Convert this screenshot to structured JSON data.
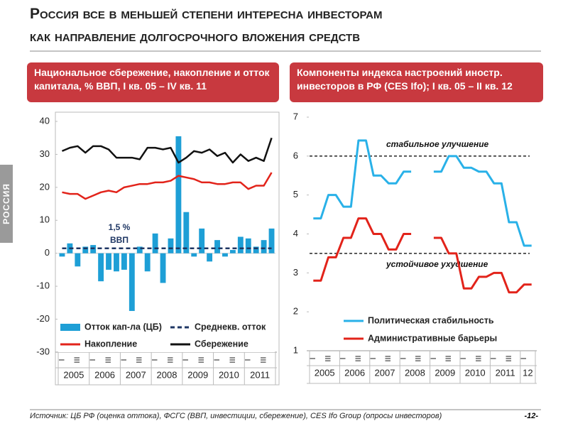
{
  "header": {
    "title_line1": "Россия все в меньшей степени интересна инвесторам",
    "title_line2": "как направление долгосрочного вложения средств"
  },
  "side_label": "РОССИЯ",
  "footer": {
    "source": "Источник: ЦБ РФ (оценка оттока), ФСГС (ВВП, инвестиции, сбережение), CES Ifo Group (опросы инвесторов)",
    "page_number": "-12-"
  },
  "chart_data": [
    {
      "type": "combo",
      "title": "Национальное сбережение, накопление и отток капитала, % ВВП, I кв. 05 – IV кв. 11",
      "categories": [
        "I",
        null,
        "III",
        null,
        "I",
        null,
        "III",
        null,
        "I",
        null,
        "III",
        null,
        "I",
        null,
        "III",
        null,
        "I",
        null,
        "III",
        null,
        "I",
        null,
        "III",
        null,
        "I",
        null,
        "III",
        null
      ],
      "years": [
        "2005",
        "2006",
        "2007",
        "2008",
        "2009",
        "2010",
        "2011"
      ],
      "ylim": [
        -30,
        40
      ],
      "yticks": [
        -30,
        -20,
        -10,
        0,
        10,
        20,
        30,
        40
      ],
      "annotation": [
        "1,5 %",
        "ВВП"
      ],
      "series": [
        {
          "name": "Отток кап-ла (ЦБ)",
          "kind": "bar",
          "color": "#1e9fd6",
          "values": [
            -1,
            3,
            -4,
            2,
            2.5,
            -8.5,
            -5,
            -5.5,
            -5,
            -17.5,
            2,
            -5.5,
            6,
            -9,
            4.5,
            35.5,
            12.5,
            -1,
            7.5,
            -2.5,
            4,
            -1,
            1,
            5,
            4.5,
            2,
            4,
            7.5
          ]
        },
        {
          "name": "Среднекв. отток",
          "kind": "dashed",
          "color": "#1f3764",
          "values": [
            1.5,
            1.5,
            1.5,
            1.5,
            1.5,
            1.5,
            1.5,
            1.5,
            1.5,
            1.5,
            1.5,
            1.5,
            1.5,
            1.5,
            1.5,
            1.5,
            1.5,
            1.5,
            1.5,
            1.5,
            1.5,
            1.5,
            1.5,
            1.5,
            1.5,
            1.5,
            1.5,
            1.5
          ]
        },
        {
          "name": "Накопление",
          "kind": "line",
          "color": "#e2231a",
          "values": [
            18.5,
            18,
            18,
            16.5,
            17.5,
            18.5,
            19,
            18.5,
            20,
            20.5,
            21,
            21,
            21.5,
            21.5,
            22,
            23.5,
            23,
            22.5,
            21.5,
            21.5,
            21,
            21,
            21.5,
            21.5,
            19.5,
            20.5,
            20.5,
            24.5
          ]
        },
        {
          "name": "Сбережение",
          "kind": "line",
          "color": "#111111",
          "values": [
            31,
            32,
            32.5,
            30.5,
            32.5,
            32.5,
            31.5,
            29,
            29,
            29,
            28.5,
            32,
            32,
            31.5,
            32,
            27.5,
            29,
            31,
            30.5,
            31.5,
            29.5,
            30.5,
            27.5,
            30,
            28,
            29,
            28,
            35
          ]
        }
      ]
    },
    {
      "type": "line",
      "title": "Компоненты индекса настроений иностр. инвесторов в РФ (CES Ifo); I кв. 05 – II кв. 12",
      "categories": [
        "I",
        null,
        "III",
        null,
        "I",
        null,
        "III",
        null,
        "I",
        null,
        "III",
        null,
        "I",
        null,
        "III",
        null,
        "I",
        null,
        "III",
        null,
        "I",
        null,
        "III",
        null,
        "I",
        null,
        "III",
        null,
        "I",
        null
      ],
      "years": [
        "2005",
        "2006",
        "2007",
        "2008",
        "2009",
        "2010",
        "2011",
        "12"
      ],
      "ylim": [
        1,
        7
      ],
      "yticks": [
        1,
        2,
        3,
        4,
        5,
        6,
        7
      ],
      "reference_lines": [
        {
          "value": 6,
          "label": "стабильное улучшение"
        },
        {
          "value": 3.5,
          "label": "устойчивое ухудшение"
        }
      ],
      "series": [
        {
          "name": "Политическая стабильность",
          "kind": "line",
          "color": "#29b1e8",
          "values": [
            4.4,
            4.4,
            5,
            5,
            4.7,
            4.7,
            6.4,
            6.4,
            5.5,
            5.5,
            5.3,
            5.3,
            5.6,
            5.6,
            null,
            null,
            5.6,
            5.6,
            6,
            6,
            5.7,
            5.7,
            5.6,
            5.6,
            5.3,
            5.3,
            4.3,
            4.3,
            3.7,
            3.7
          ]
        },
        {
          "name": "Административные барьеры",
          "kind": "line",
          "color": "#e2231a",
          "values": [
            2.8,
            2.8,
            3.4,
            3.4,
            3.9,
            3.9,
            4.4,
            4.4,
            4,
            4,
            3.6,
            3.6,
            4,
            4,
            null,
            null,
            3.9,
            3.9,
            3.5,
            3.5,
            2.6,
            2.6,
            2.9,
            2.9,
            3,
            3,
            2.5,
            2.5,
            2.7,
            2.7
          ]
        }
      ]
    }
  ]
}
